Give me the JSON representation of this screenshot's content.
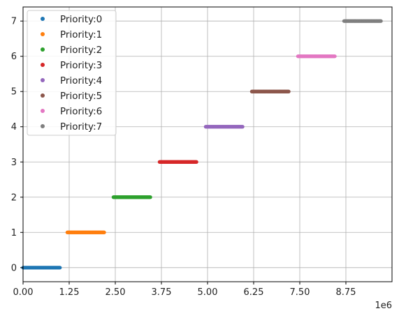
{
  "chart_data": {
    "type": "scatter",
    "title": "",
    "xlabel": "",
    "ylabel": "",
    "x_scale_label": "1e6",
    "xlim": [
      0,
      10000000
    ],
    "ylim": [
      -0.4,
      7.4
    ],
    "x_ticks": [
      0,
      1250000,
      2500000,
      3750000,
      5000000,
      6250000,
      7500000,
      8750000
    ],
    "x_tick_labels": [
      "0.00",
      "1.25",
      "2.50",
      "3.75",
      "5.00",
      "6.25",
      "7.50",
      "8.75"
    ],
    "y_ticks": [
      0,
      1,
      2,
      3,
      4,
      5,
      6,
      7
    ],
    "y_tick_labels": [
      "0",
      "1",
      "2",
      "3",
      "4",
      "5",
      "6",
      "7"
    ],
    "grid": true,
    "legend_position": "top-left",
    "series": [
      {
        "name": "Priority:0",
        "color": "#1f77b4",
        "y": 0,
        "x_range": [
          0,
          1000000
        ]
      },
      {
        "name": "Priority:1",
        "color": "#ff7f0e",
        "y": 1,
        "x_range": [
          1200000,
          2200000
        ]
      },
      {
        "name": "Priority:2",
        "color": "#2ca02c",
        "y": 2,
        "x_range": [
          2450000,
          3450000
        ]
      },
      {
        "name": "Priority:3",
        "color": "#d62728",
        "y": 3,
        "x_range": [
          3700000,
          4700000
        ]
      },
      {
        "name": "Priority:4",
        "color": "#9467bd",
        "y": 4,
        "x_range": [
          4950000,
          5950000
        ]
      },
      {
        "name": "Priority:5",
        "color": "#8c564b",
        "y": 5,
        "x_range": [
          6200000,
          7200000
        ]
      },
      {
        "name": "Priority:6",
        "color": "#e377c2",
        "y": 6,
        "x_range": [
          7450000,
          8450000
        ]
      },
      {
        "name": "Priority:7",
        "color": "#7f7f7f",
        "y": 7,
        "x_range": [
          8700000,
          9700000
        ]
      }
    ]
  }
}
